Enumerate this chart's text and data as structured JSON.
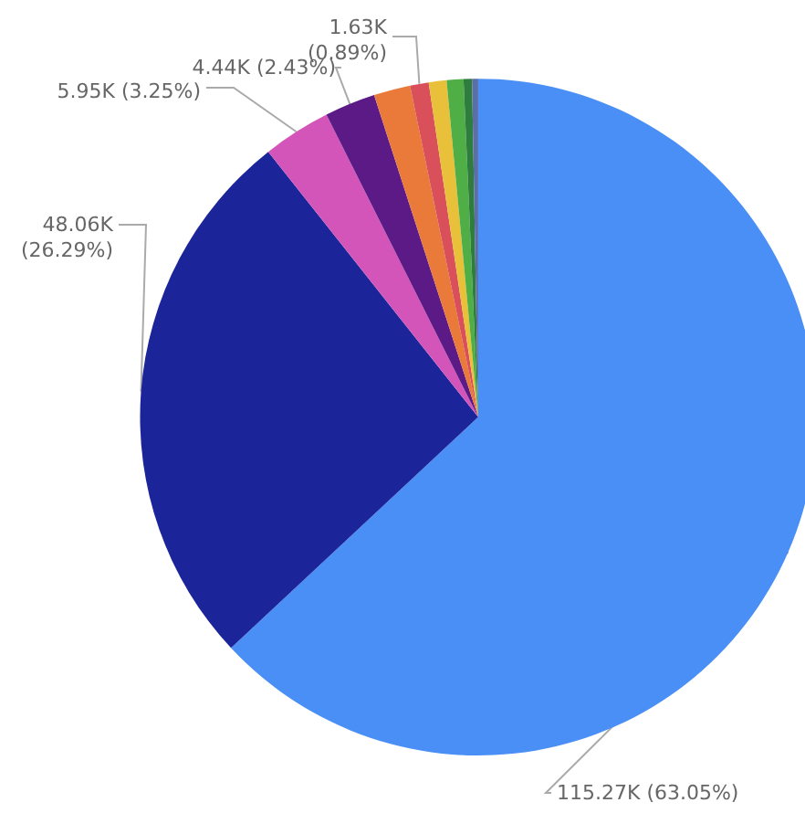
{
  "chart_data": {
    "type": "pie",
    "categories": [
      null,
      null,
      null,
      null,
      null,
      null,
      null,
      null,
      null,
      null
    ],
    "values": [
      63.05,
      26.29,
      3.25,
      2.43,
      1.75,
      0.89,
      0.85,
      0.8,
      0.4,
      0.29
    ],
    "colors": [
      "#4a8ff5",
      "#1b2499",
      "#d455b9",
      "#5b1a86",
      "#e97a3a",
      "#d9505a",
      "#e8c03a",
      "#4fae45",
      "#2e7d3f",
      "#5a6fa8"
    ],
    "value_labels": [
      "115.27K (63.05%)",
      "48.06K\n(26.29%)",
      "5.95K (3.25%)",
      "4.44K (2.43%)",
      null,
      "1.63K\n(0.89%)",
      null,
      null,
      null,
      null
    ]
  }
}
